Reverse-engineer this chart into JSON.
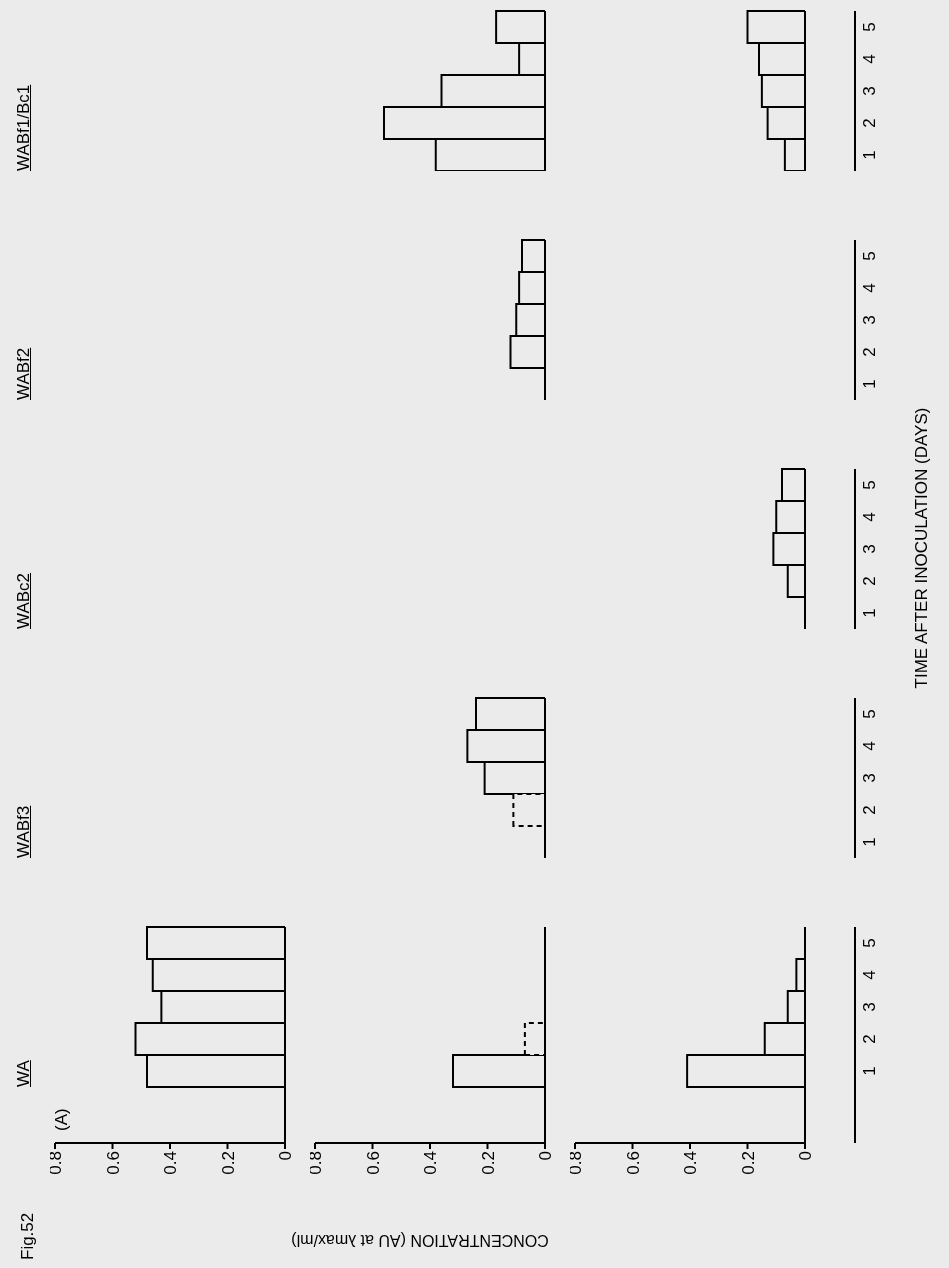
{
  "chart_data": [
    {
      "type": "bar",
      "orientation": "horizontal",
      "title": "WA",
      "annotations": [
        "Fig.52",
        "(A)",
        "WABf3",
        "WABc2",
        "WABf2",
        "WABf1/Bc1"
      ],
      "categories": [
        "5",
        "4",
        "3",
        "2",
        "1"
      ],
      "xlim": [
        0.8,
        0
      ],
      "xticks": [
        0,
        0.2,
        0.4,
        0.6,
        0.8
      ],
      "tick_labels": "x",
      "series": [
        {
          "color": "#000000",
          "values": [
            0.48,
            0.46,
            0.43,
            0.52,
            0.48
          ]
        }
      ]
    },
    {
      "type": "bar",
      "orientation": "horizontal",
      "xlabel": "CONCENTRATION (AU at λmax/ml)",
      "categories": [
        "5",
        "4",
        "3",
        "2",
        "1"
      ],
      "xlim": [
        0.8,
        0
      ],
      "xticks": [
        0,
        0.2,
        0.4,
        0.6,
        0.8
      ],
      "tick_labels": "x",
      "stacked": true,
      "series": [
        {
          "color": "#000000",
          "values": [
            0,
            0,
            0,
            null,
            0.32
          ]
        },
        {
          "color": "#000000",
          "line_style": "dashed",
          "values": [
            null,
            null,
            null,
            0.07,
            null
          ]
        }
      ]
    },
    {
      "type": "bar",
      "orientation": "horizontal",
      "categories": [
        "5",
        "4",
        "3",
        "2",
        "1"
      ],
      "xlim": [
        0.8,
        0
      ],
      "xticks": [
        0,
        0.2,
        0.4,
        0.6,
        0.8
      ],
      "tick_labels": false,
      "stacked": true,
      "series": [
        {
          "color": "#000000",
          "values": [
            0.24,
            0.27,
            0.21,
            null,
            0
          ]
        },
        {
          "color": "#000000",
          "line_style": "dashed",
          "values": [
            null,
            null,
            null,
            0.11,
            null
          ]
        }
      ]
    },
    {
      "type": "bar",
      "orientation": "horizontal",
      "categories": [
        "5",
        "4",
        "3",
        "2",
        "1"
      ],
      "xlim": [
        0.8,
        0
      ],
      "xticks": [
        0,
        0.2,
        0.4,
        0.6,
        0.8
      ],
      "tick_labels": false,
      "series": [
        {
          "color": "#000000",
          "values": [
            0.08,
            0.09,
            0.1,
            0.12,
            0
          ]
        }
      ]
    },
    {
      "type": "bar",
      "orientation": "horizontal",
      "categories": [
        "5",
        "4",
        "3",
        "2",
        "1"
      ],
      "xlim": [
        0.8,
        0
      ],
      "xticks": [
        0,
        0.2,
        0.4,
        0.6,
        0.8
      ],
      "tick_labels": false,
      "series": [
        {
          "color": "#000000",
          "values": [
            0.17,
            0.09,
            0.36,
            0.56,
            0.38
          ]
        }
      ]
    },
    {
      "type": "bar",
      "orientation": "horizontal",
      "categories": [
        "5",
        "4",
        "3",
        "2",
        "1"
      ],
      "xlim": [
        0.8,
        0
      ],
      "xticks": [
        0,
        0.2,
        0.4,
        0.6,
        0.8
      ],
      "series": [
        {
          "color": "#000000",
          "values": [
            0,
            0.03,
            0.06,
            0.14,
            0.41
          ]
        }
      ]
    },
    {
      "type": "bar",
      "orientation": "horizontal",
      "categories": [
        "5",
        "4",
        "3",
        "2",
        "1"
      ],
      "xlim": [
        0.8,
        0
      ],
      "xticks": [
        0,
        0.2,
        0.4,
        0.6,
        0.8
      ],
      "tick_labels": "y",
      "series": [
        {
          "color": "#000000",
          "values": [
            null,
            null,
            null,
            null,
            null
          ]
        }
      ]
    },
    {
      "type": "bar",
      "orientation": "horizontal",
      "ylabel": "TIME AFTER INOCULATION (DAYS)",
      "categories": [
        "5",
        "4",
        "3",
        "2",
        "1"
      ],
      "xlim": [
        0.8,
        0
      ],
      "xticks": [
        0,
        0.2,
        0.4,
        0.6,
        0.8
      ],
      "tick_labels": "y",
      "series": [
        {
          "color": "#000000",
          "values": [
            0.08,
            0.1,
            0.11,
            0.06,
            0
          ]
        }
      ]
    },
    {
      "type": "bar",
      "orientation": "horizontal",
      "categories": [
        "5",
        "4",
        "3",
        "2",
        "1"
      ],
      "xlim": [
        0.8,
        0
      ],
      "xticks": [
        0,
        0.2,
        0.4,
        0.6,
        0.8
      ],
      "tick_labels": "y",
      "series": [
        {
          "color": "#000000",
          "values": [
            null,
            null,
            null,
            null,
            null
          ]
        }
      ]
    },
    {
      "type": "bar",
      "orientation": "horizontal",
      "categories": [
        "5",
        "4",
        "3",
        "2",
        "1"
      ],
      "xlim": [
        0.8,
        0
      ],
      "xticks": [
        0,
        0.2,
        0.4,
        0.6,
        0.8
      ],
      "tick_labels": "y",
      "series": [
        {
          "color": "#000000",
          "values": [
            0.2,
            0.16,
            0.15,
            0.13,
            0.07
          ]
        }
      ]
    }
  ]
}
